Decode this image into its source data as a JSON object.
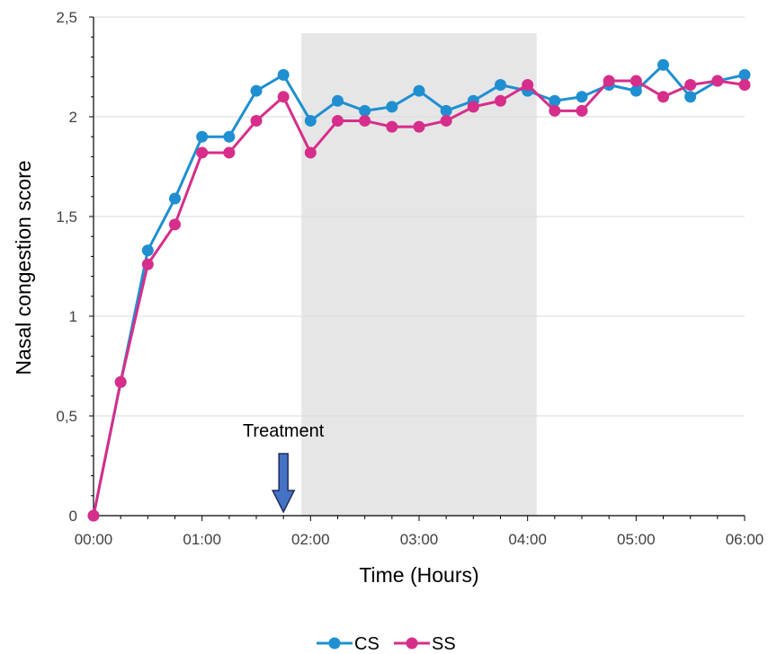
{
  "chart_data": {
    "type": "line",
    "title": "",
    "xlabel": "Time (Hours)",
    "ylabel": "Nasal congestion score",
    "x": [
      "00:00",
      "00:15",
      "00:30",
      "00:45",
      "01:00",
      "01:15",
      "01:30",
      "01:45",
      "02:00",
      "02:15",
      "02:30",
      "02:45",
      "03:00",
      "03:15",
      "03:30",
      "03:45",
      "04:00",
      "04:15",
      "04:30",
      "04:45",
      "05:00",
      "05:15",
      "05:30",
      "05:45",
      "06:00"
    ],
    "x_ticks": [
      "00:00",
      "01:00",
      "02:00",
      "03:00",
      "04:00",
      "05:00",
      "06:00"
    ],
    "y_ticks": [
      "0",
      "0,5",
      "1",
      "1,5",
      "2",
      "2,5"
    ],
    "ylim": [
      0,
      2.5
    ],
    "grid": "horizontal",
    "legend_position": "bottom",
    "series": [
      {
        "name": "CS",
        "color": "#1f8fd1",
        "values": [
          0,
          0.67,
          1.33,
          1.59,
          1.9,
          1.9,
          2.13,
          2.21,
          1.98,
          2.08,
          2.03,
          2.05,
          2.13,
          2.03,
          2.08,
          2.16,
          2.13,
          2.08,
          2.1,
          2.16,
          2.13,
          2.26,
          2.1,
          2.18,
          2.21
        ]
      },
      {
        "name": "SS",
        "color": "#d62e8a",
        "values": [
          0,
          0.67,
          1.26,
          1.46,
          1.82,
          1.82,
          1.98,
          2.1,
          1.82,
          1.98,
          1.98,
          1.95,
          1.95,
          1.98,
          2.05,
          2.08,
          2.16,
          2.03,
          2.03,
          2.18,
          2.18,
          2.1,
          2.16,
          2.18,
          2.16
        ]
      }
    ],
    "shaded_region": {
      "from": "01:55",
      "to": "04:05",
      "color": "#e6e6e6"
    },
    "annotations": [
      {
        "text": "Treatment",
        "at": "01:45",
        "marker": "down-arrow",
        "arrow_color": "#4472c4"
      }
    ]
  }
}
